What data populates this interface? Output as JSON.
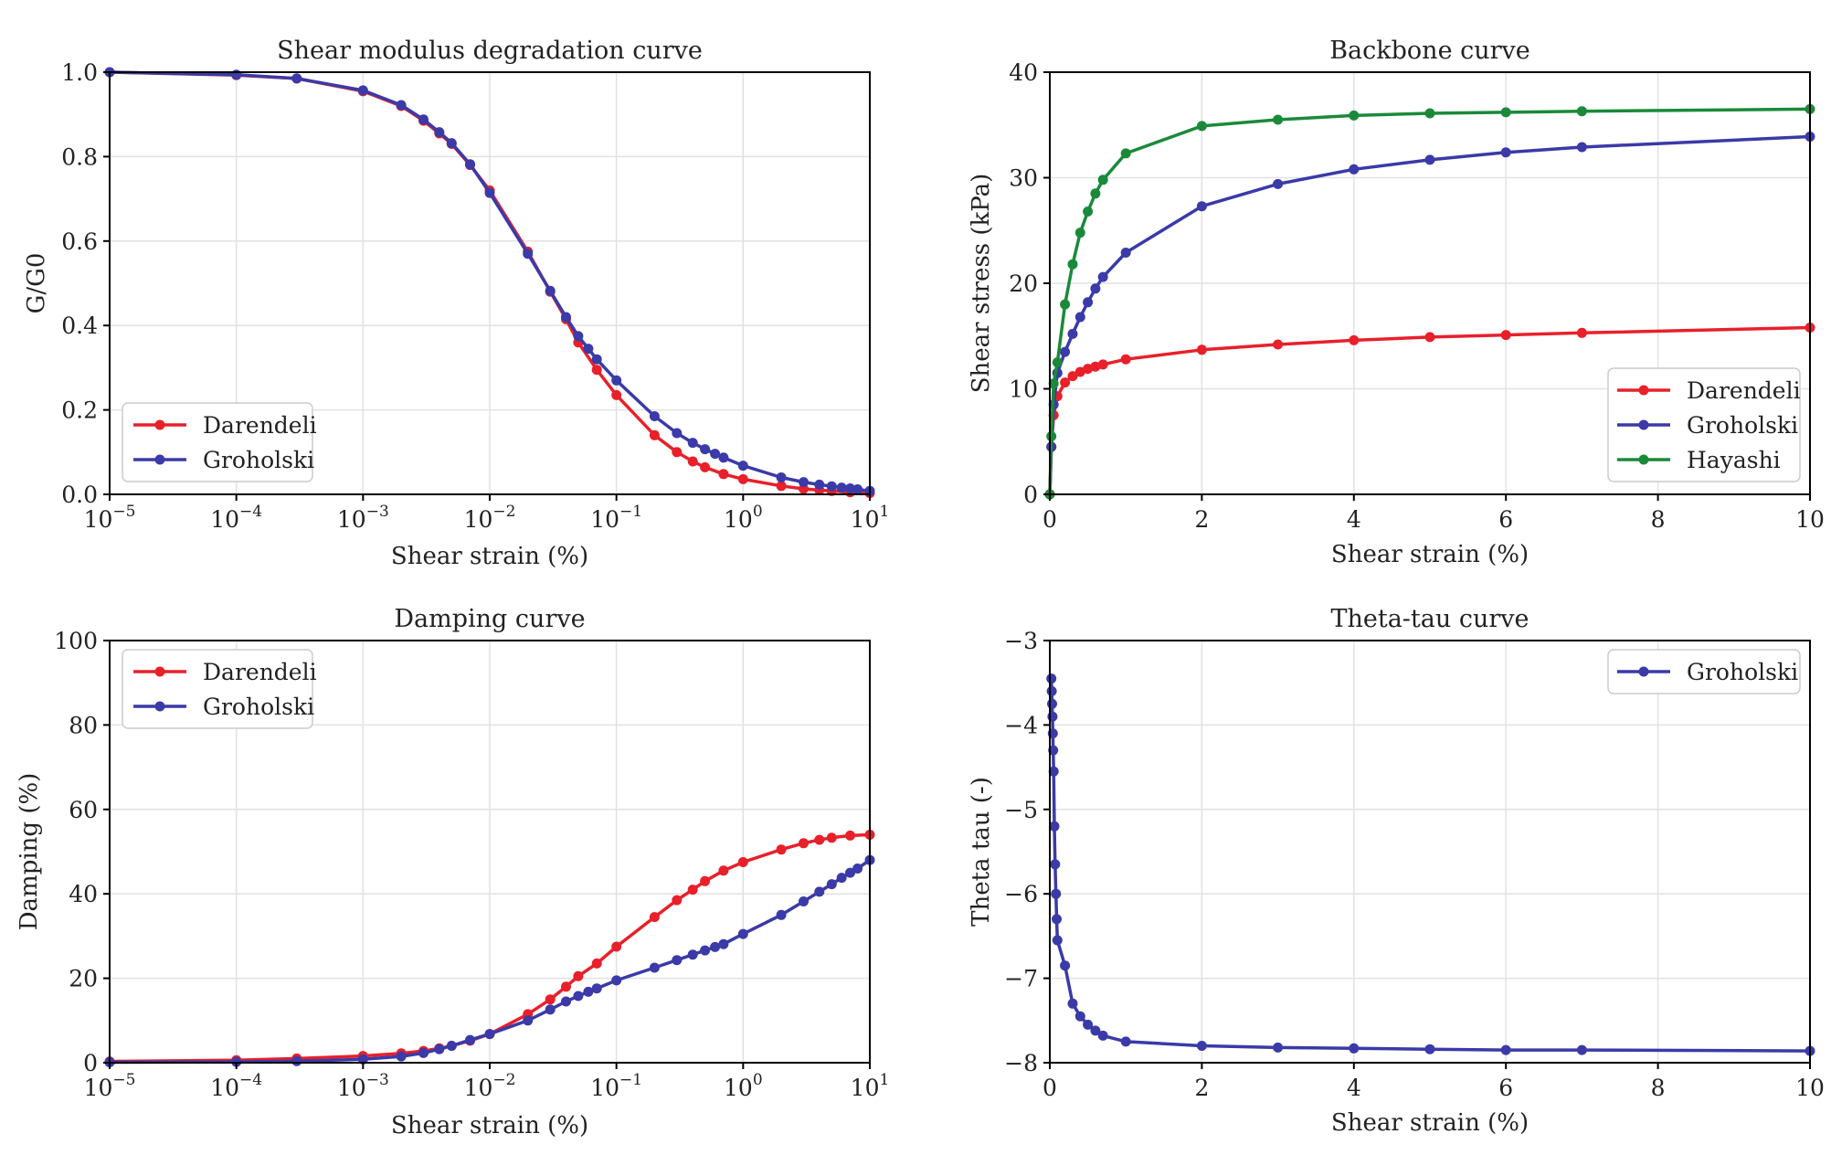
{
  "chart_data": [
    {
      "id": "g",
      "type": "line",
      "title": "Shear modulus degradation curve",
      "xlabel": "Shear strain (%)",
      "ylabel": "G/G0",
      "xscale": "log",
      "xlim": [
        1e-05,
        10
      ],
      "ylim": [
        0,
        1
      ],
      "xticks": [
        {
          "v": 1e-05,
          "exp": "−5"
        },
        {
          "v": 0.0001,
          "exp": "−4"
        },
        {
          "v": 0.001,
          "exp": "−3"
        },
        {
          "v": 0.01,
          "exp": "−2"
        },
        {
          "v": 0.1,
          "exp": "−1"
        },
        {
          "v": 1,
          "exp": "0"
        },
        {
          "v": 10,
          "exp": "1"
        }
      ],
      "yticks": [
        {
          "v": 0,
          "label": "0.0"
        },
        {
          "v": 0.2,
          "label": "0.2"
        },
        {
          "v": 0.4,
          "label": "0.4"
        },
        {
          "v": 0.6,
          "label": "0.6"
        },
        {
          "v": 0.8,
          "label": "0.8"
        },
        {
          "v": 1,
          "label": "1.0"
        }
      ],
      "grid": true,
      "legend": "lower-left",
      "series": [
        {
          "name": "Darendeli",
          "color": "#e8202a",
          "x": [
            1e-05,
            0.0001,
            0.0003,
            0.001,
            0.002,
            0.003,
            0.004,
            0.005,
            0.007,
            0.01,
            0.02,
            0.03,
            0.04,
            0.05,
            0.07,
            0.1,
            0.2,
            0.3,
            0.4,
            0.5,
            0.7,
            1,
            2,
            3,
            4,
            5,
            7,
            10
          ],
          "y": [
            1.0,
            0.993,
            0.985,
            0.955,
            0.92,
            0.885,
            0.855,
            0.83,
            0.78,
            0.72,
            0.575,
            0.48,
            0.415,
            0.36,
            0.295,
            0.235,
            0.14,
            0.1,
            0.078,
            0.064,
            0.048,
            0.036,
            0.02,
            0.013,
            0.01,
            0.008,
            0.005,
            0.003
          ]
        },
        {
          "name": "Groholski",
          "color": "#3a3aa8",
          "x": [
            1e-05,
            0.0001,
            0.0003,
            0.001,
            0.002,
            0.003,
            0.004,
            0.005,
            0.007,
            0.01,
            0.02,
            0.03,
            0.04,
            0.05,
            0.06,
            0.07,
            0.1,
            0.2,
            0.3,
            0.4,
            0.5,
            0.6,
            0.7,
            1,
            2,
            3,
            4,
            5,
            6,
            7,
            8,
            10
          ],
          "y": [
            1.0,
            0.994,
            0.985,
            0.957,
            0.922,
            0.888,
            0.858,
            0.832,
            0.782,
            0.714,
            0.57,
            0.482,
            0.42,
            0.375,
            0.345,
            0.32,
            0.27,
            0.185,
            0.145,
            0.122,
            0.107,
            0.096,
            0.087,
            0.068,
            0.04,
            0.029,
            0.023,
            0.019,
            0.016,
            0.014,
            0.012,
            0.008
          ]
        }
      ]
    },
    {
      "id": "b",
      "type": "line",
      "title": "Backbone curve",
      "xlabel": "Shear strain (%)",
      "ylabel": "Shear stress (kPa)",
      "xlim": [
        0,
        10
      ],
      "ylim": [
        0,
        40
      ],
      "xticks": [
        {
          "v": 0,
          "label": "0"
        },
        {
          "v": 2,
          "label": "2"
        },
        {
          "v": 4,
          "label": "4"
        },
        {
          "v": 6,
          "label": "6"
        },
        {
          "v": 8,
          "label": "8"
        },
        {
          "v": 10,
          "label": "10"
        }
      ],
      "yticks": [
        {
          "v": 0,
          "label": "0"
        },
        {
          "v": 10,
          "label": "10"
        },
        {
          "v": 20,
          "label": "20"
        },
        {
          "v": 30,
          "label": "30"
        },
        {
          "v": 40,
          "label": "40"
        }
      ],
      "grid": true,
      "legend": "lower-right",
      "series": [
        {
          "name": "Darendeli",
          "color": "#e8202a",
          "x": [
            0,
            0.02,
            0.05,
            0.1,
            0.2,
            0.3,
            0.4,
            0.5,
            0.6,
            0.7,
            1,
            2,
            3,
            4,
            5,
            6,
            7,
            10
          ],
          "y": [
            0,
            4.5,
            7.5,
            9.3,
            10.6,
            11.2,
            11.6,
            11.9,
            12.1,
            12.3,
            12.8,
            13.7,
            14.2,
            14.6,
            14.9,
            15.1,
            15.3,
            15.8
          ]
        },
        {
          "name": "Groholski",
          "color": "#3a3aa8",
          "x": [
            0,
            0.02,
            0.05,
            0.1,
            0.2,
            0.3,
            0.4,
            0.5,
            0.6,
            0.7,
            1,
            2,
            3,
            4,
            5,
            6,
            7,
            10
          ],
          "y": [
            0,
            4.5,
            8.5,
            11.5,
            13.5,
            15.2,
            16.8,
            18.2,
            19.5,
            20.6,
            22.9,
            27.3,
            29.4,
            30.8,
            31.7,
            32.4,
            32.9,
            33.9
          ]
        },
        {
          "name": "Hayashi",
          "color": "#1a8a3a",
          "x": [
            0,
            0.02,
            0.05,
            0.1,
            0.2,
            0.3,
            0.4,
            0.5,
            0.6,
            0.7,
            1,
            2,
            3,
            4,
            5,
            6,
            7,
            10
          ],
          "y": [
            0,
            5.5,
            10.5,
            12.5,
            18,
            21.8,
            24.8,
            26.8,
            28.5,
            29.8,
            32.3,
            34.9,
            35.5,
            35.9,
            36.1,
            36.2,
            36.3,
            36.5
          ]
        }
      ]
    },
    {
      "id": "d",
      "type": "line",
      "title": "Damping curve",
      "xlabel": "Shear strain (%)",
      "ylabel": "Damping (%)",
      "xscale": "log",
      "xlim": [
        1e-05,
        10
      ],
      "ylim": [
        0,
        100
      ],
      "xticks": [
        {
          "v": 1e-05,
          "exp": "−5"
        },
        {
          "v": 0.0001,
          "exp": "−4"
        },
        {
          "v": 0.001,
          "exp": "−3"
        },
        {
          "v": 0.01,
          "exp": "−2"
        },
        {
          "v": 0.1,
          "exp": "−1"
        },
        {
          "v": 1,
          "exp": "0"
        },
        {
          "v": 10,
          "exp": "1"
        }
      ],
      "yticks": [
        {
          "v": 0,
          "label": "0"
        },
        {
          "v": 20,
          "label": "20"
        },
        {
          "v": 40,
          "label": "40"
        },
        {
          "v": 60,
          "label": "60"
        },
        {
          "v": 80,
          "label": "80"
        },
        {
          "v": 100,
          "label": "100"
        }
      ],
      "grid": true,
      "legend": "upper-left",
      "series": [
        {
          "name": "Darendeli",
          "color": "#e8202a",
          "x": [
            1e-05,
            0.0001,
            0.0003,
            0.001,
            0.002,
            0.003,
            0.004,
            0.005,
            0.007,
            0.01,
            0.02,
            0.03,
            0.04,
            0.05,
            0.07,
            0.1,
            0.2,
            0.3,
            0.4,
            0.5,
            0.7,
            1,
            2,
            3,
            4,
            5,
            7,
            10
          ],
          "y": [
            0.3,
            0.6,
            1.0,
            1.6,
            2.2,
            2.8,
            3.4,
            4.0,
            5.2,
            6.8,
            11.5,
            15,
            18,
            20.5,
            23.5,
            27.5,
            34.5,
            38.5,
            41,
            43,
            45.5,
            47.5,
            50.5,
            52,
            52.8,
            53.3,
            53.8,
            54
          ]
        },
        {
          "name": "Groholski",
          "color": "#3a3aa8",
          "x": [
            1e-05,
            0.0001,
            0.0003,
            0.001,
            0.002,
            0.003,
            0.004,
            0.005,
            0.007,
            0.01,
            0.02,
            0.03,
            0.04,
            0.05,
            0.06,
            0.07,
            0.1,
            0.2,
            0.3,
            0.4,
            0.5,
            0.6,
            0.7,
            1,
            2,
            3,
            4,
            5,
            6,
            7,
            8,
            10
          ],
          "y": [
            0.1,
            0.2,
            0.4,
            0.8,
            1.5,
            2.3,
            3.2,
            4.0,
            5.4,
            6.8,
            10,
            12.6,
            14.5,
            15.8,
            16.8,
            17.6,
            19.5,
            22.5,
            24.3,
            25.6,
            26.6,
            27.4,
            28.1,
            30.5,
            35,
            38.2,
            40.5,
            42.3,
            43.8,
            45,
            46,
            48
          ]
        }
      ]
    },
    {
      "id": "t",
      "type": "line",
      "title": "Theta-tau curve",
      "xlabel": "Shear strain (%)",
      "ylabel": "Theta tau (-)",
      "xlim": [
        0,
        10
      ],
      "ylim": [
        -8,
        -3
      ],
      "xticks": [
        {
          "v": 0,
          "label": "0"
        },
        {
          "v": 2,
          "label": "2"
        },
        {
          "v": 4,
          "label": "4"
        },
        {
          "v": 6,
          "label": "6"
        },
        {
          "v": 8,
          "label": "8"
        },
        {
          "v": 10,
          "label": "10"
        }
      ],
      "yticks": [
        {
          "v": -8,
          "label": "−8"
        },
        {
          "v": -7,
          "label": "−7"
        },
        {
          "v": -6,
          "label": "−6"
        },
        {
          "v": -5,
          "label": "−5"
        },
        {
          "v": -4,
          "label": "−4"
        },
        {
          "v": -3,
          "label": "−3"
        }
      ],
      "grid": true,
      "legend": "upper-right",
      "series": [
        {
          "name": "Groholski",
          "color": "#3a3aa8",
          "x": [
            0.02,
            0.025,
            0.03,
            0.035,
            0.04,
            0.045,
            0.05,
            0.06,
            0.07,
            0.08,
            0.09,
            0.1,
            0.2,
            0.3,
            0.4,
            0.5,
            0.6,
            0.7,
            1,
            2,
            3,
            4,
            5,
            6,
            7,
            10
          ],
          "y": [
            -3.45,
            -3.6,
            -3.75,
            -3.9,
            -4.1,
            -4.3,
            -4.55,
            -5.2,
            -5.65,
            -6.0,
            -6.3,
            -6.55,
            -6.85,
            -7.3,
            -7.45,
            -7.55,
            -7.62,
            -7.68,
            -7.75,
            -7.8,
            -7.82,
            -7.83,
            -7.84,
            -7.85,
            -7.85,
            -7.86
          ]
        }
      ]
    }
  ]
}
